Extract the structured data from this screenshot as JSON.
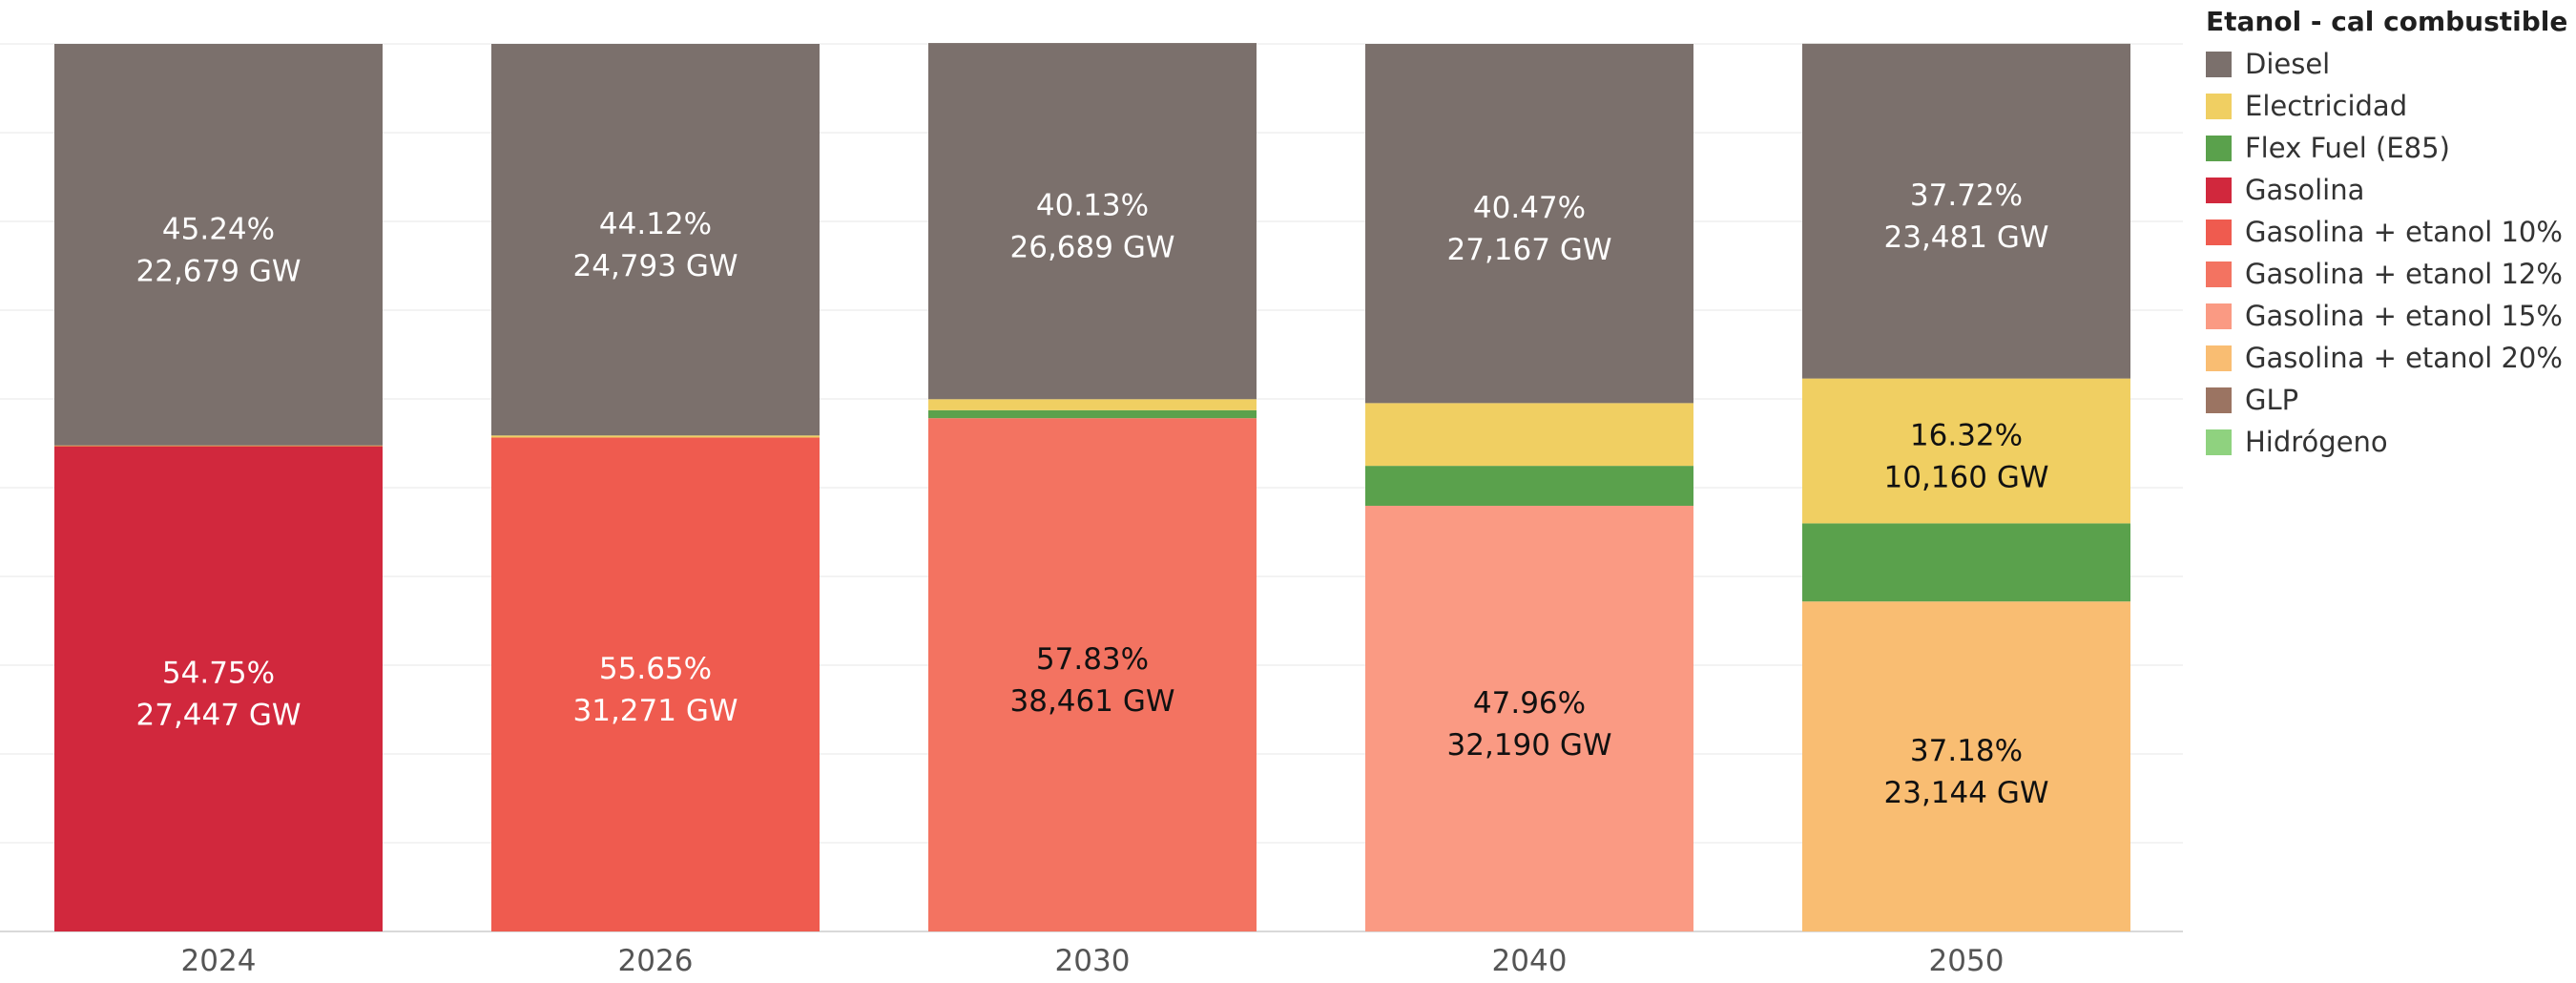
{
  "chart_data": {
    "type": "bar",
    "stacked": true,
    "normalized": true,
    "categories": [
      "2024",
      "2026",
      "2030",
      "2040",
      "2050"
    ],
    "series": [
      {
        "name": "Gasolina",
        "color": "#d1283d",
        "text_color": "#ffffff",
        "values": [
          54.75,
          0,
          0,
          0,
          0
        ],
        "labels": [
          "27,447 GW",
          "",
          "",
          "",
          ""
        ]
      },
      {
        "name": "Gasolina + etanol 10%",
        "color": "#ef5b4f",
        "text_color": "#ffffff",
        "values": [
          0,
          55.65,
          0,
          0,
          0
        ],
        "labels": [
          "",
          "31,271 GW",
          "",
          "",
          ""
        ]
      },
      {
        "name": "Gasolina + etanol 12%",
        "color": "#f37361",
        "text_color": "#111111",
        "values": [
          0,
          0,
          57.83,
          0,
          0
        ],
        "labels": [
          "",
          "",
          "38,461 GW",
          "",
          ""
        ]
      },
      {
        "name": "Gasolina + etanol 15%",
        "color": "#fa9a83",
        "text_color": "#111111",
        "values": [
          0,
          0,
          0,
          47.96,
          0
        ],
        "labels": [
          "",
          "",
          "",
          "32,190 GW",
          ""
        ]
      },
      {
        "name": "Gasolina + etanol 20%",
        "color": "#f9bd72",
        "text_color": "#111111",
        "values": [
          0,
          0,
          0,
          0,
          37.18
        ],
        "labels": [
          "",
          "",
          "",
          "",
          "23,144 GW"
        ]
      },
      {
        "name": "Flex Fuel (E85)",
        "color": "#5aa14c",
        "text_color": "#ffffff",
        "values": [
          0,
          0,
          0.9,
          4.5,
          8.8
        ],
        "labels": [
          "",
          "",
          "",
          "",
          ""
        ]
      },
      {
        "name": "Electricidad",
        "color": "#f0cf62",
        "text_color": "#111111",
        "values": [
          0.01,
          0.23,
          1.24,
          7.07,
          16.32
        ],
        "labels": [
          "",
          "",
          "",
          "",
          "10,160 GW"
        ]
      },
      {
        "name": "Diesel",
        "color": "#7b706c",
        "text_color": "#ffffff",
        "values": [
          45.24,
          44.12,
          40.13,
          40.47,
          37.72
        ],
        "labels": [
          "22,679 GW",
          "24,793 GW",
          "26,689 GW",
          "27,167 GW",
          "23,481 GW"
        ]
      }
    ],
    "label_threshold": 15,
    "ylim": [
      0,
      100
    ],
    "grid": true,
    "xlabel": "",
    "ylabel": ""
  },
  "legend": {
    "title": "Etanol - cal combustible",
    "placement": "right",
    "items": [
      {
        "name": "Diesel",
        "color": "#7b706c"
      },
      {
        "name": "Electricidad",
        "color": "#f0cf62"
      },
      {
        "name": "Flex Fuel (E85)",
        "color": "#5aa14c"
      },
      {
        "name": "Gasolina",
        "color": "#d1283d"
      },
      {
        "name": "Gasolina + etanol 10%",
        "color": "#ef5b4f"
      },
      {
        "name": "Gasolina + etanol 12%",
        "color": "#f37361"
      },
      {
        "name": "Gasolina + etanol 15%",
        "color": "#fa9a83"
      },
      {
        "name": "Gasolina + etanol 20%",
        "color": "#f9bd72"
      },
      {
        "name": "GLP",
        "color": "#9b7462"
      },
      {
        "name": "Hidrógeno",
        "color": "#8fd27f"
      }
    ]
  }
}
